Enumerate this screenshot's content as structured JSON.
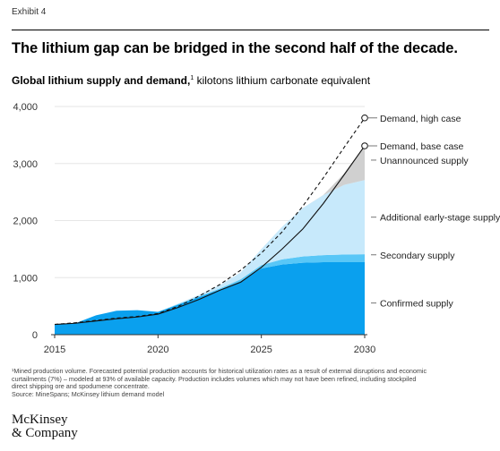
{
  "exhibit": "Exhibit 4",
  "title": "The lithium gap can be bridged in the second half of the decade.",
  "subtitle": {
    "bold": "Global lithium supply and demand,",
    "sup": "1",
    "rest": " kilotons lithium carbonate equivalent"
  },
  "chart_data": {
    "type": "area",
    "x": [
      2015,
      2016,
      2017,
      2018,
      2019,
      2020,
      2021,
      2022,
      2023,
      2024,
      2025,
      2026,
      2027,
      2028,
      2029,
      2030
    ],
    "xticks": [
      "2015",
      "2020",
      "2025",
      "2030"
    ],
    "yticks": [
      "0",
      "1,000",
      "2,000",
      "3,000",
      "4,000"
    ],
    "ylim": [
      0,
      4000
    ],
    "stacked_series": [
      {
        "name": "Confirmed supply",
        "color": "#0aa0ee",
        "values": [
          180,
          200,
          340,
          420,
          430,
          400,
          530,
          660,
          790,
          940,
          1160,
          1230,
          1260,
          1270,
          1270,
          1270
        ]
      },
      {
        "name": "Secondary supply",
        "color": "#59c7f7",
        "values": [
          0,
          0,
          0,
          0,
          0,
          0,
          10,
          15,
          20,
          30,
          60,
          90,
          110,
          125,
          135,
          140
        ]
      },
      {
        "name": "Additional early-stage supply",
        "color": "#c7e9fb",
        "values": [
          0,
          0,
          0,
          0,
          0,
          0,
          10,
          25,
          60,
          120,
          280,
          570,
          850,
          1050,
          1220,
          1300
        ]
      },
      {
        "name": "Unannounced supply",
        "color": "#d0d0d0",
        "values": [
          0,
          0,
          0,
          0,
          0,
          0,
          0,
          0,
          0,
          0,
          0,
          0,
          0,
          5,
          200,
          600
        ]
      }
    ],
    "lines": [
      {
        "name": "Demand, high case",
        "style": "dashed",
        "values": [
          180,
          210,
          250,
          290,
          320,
          370,
          500,
          680,
          880,
          1130,
          1430,
          1800,
          2250,
          2750,
          3280,
          3800
        ]
      },
      {
        "name": "Demand, base case",
        "style": "solid",
        "values": [
          180,
          200,
          240,
          280,
          310,
          360,
          480,
          620,
          780,
          920,
          1180,
          1500,
          1850,
          2300,
          2800,
          3310
        ]
      }
    ],
    "labels": {
      "Demand, high case": "Demand, high case",
      "Demand, base case": "Demand, base case",
      "Unannounced supply": "Unannounced supply",
      "Additional early-stage supply": "Additional early-stage supply",
      "Secondary supply": "Secondary supply",
      "Confirmed supply": "Confirmed supply"
    }
  },
  "footnote": [
    "¹Mined production volume. Forecasted potential production accounts for historical utilization rates as a result of external disruptions and economic",
    "curtailments (7%) – modeled at 93% of available capacity. Production includes volumes which may not have been refined, including stockpiled",
    "direct shipping ore and spodumene concentrate.",
    "Source: MineSpans; McKinsey lithium demand model"
  ],
  "logo": [
    "McKinsey",
    "& Company"
  ]
}
